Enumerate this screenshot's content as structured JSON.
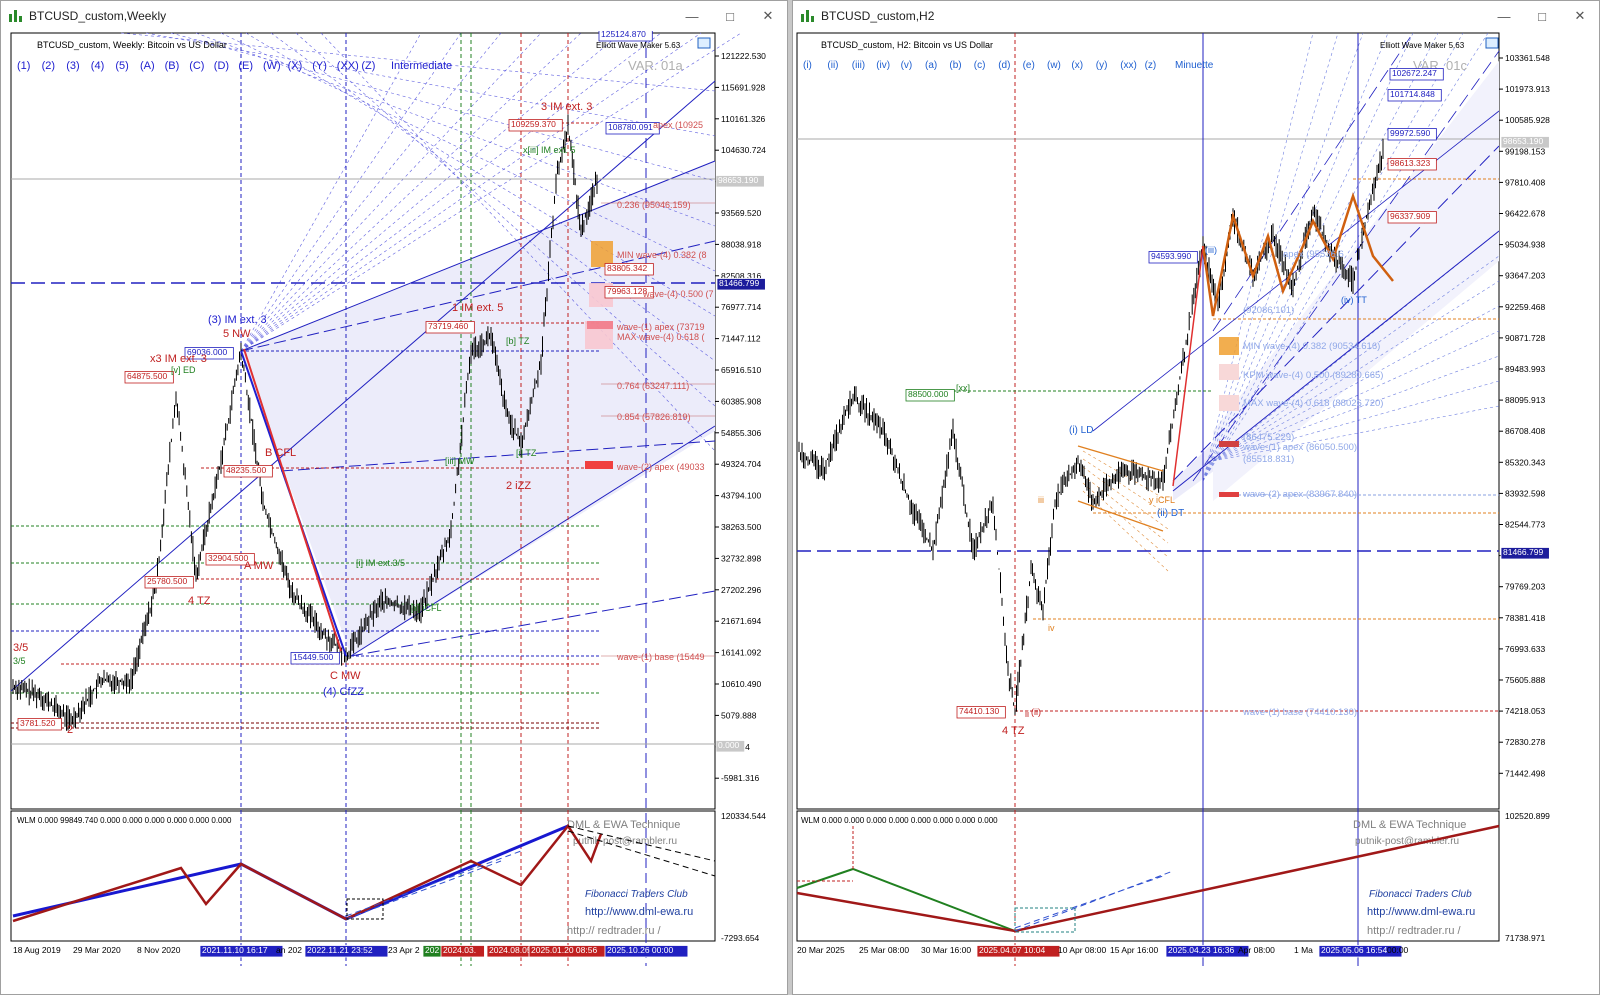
{
  "left": {
    "title": "BTCUSD_custom,Weekly",
    "symbol_line": "BTCUSD_custom, Weekly:  Bitcoin vs US Dollar",
    "plugin": "Elliott Wave Maker 5.63",
    "variant": "VAR. 01a",
    "degree": "Intermediate",
    "wave_buttons": [
      "(1)",
      "(2)",
      "(3)",
      "(4)",
      "(5)",
      "(A)",
      "(B)",
      "(C)",
      "(D)",
      "(E)",
      "(W)",
      "(X)",
      "(Y)",
      "(XX)",
      "(Z)"
    ],
    "price_axis": [
      "121222.530",
      "115691.928",
      "110161.326",
      "104630.724",
      "99100.122",
      "93569.520",
      "88038.918",
      "82508.316",
      "76977.714",
      "71447.112",
      "65916.510",
      "60385.908",
      "54855.306",
      "49324.704",
      "43794.100",
      "38263.500",
      "32732.898",
      "27202.296",
      "21671.694",
      "16141.092",
      "10610.490",
      "5079.888",
      "-451.14",
      "-5981.316"
    ],
    "current_price": "98653.190",
    "hline_price": "81466.799",
    "zero_price": "0.000",
    "time_axis": [
      "18 Aug 2019",
      "29 Mar 2020",
      "8 Nov 2020",
      "2021.11.10 16:17",
      "an 202",
      "2022.11.21 23:52",
      "23 Apr 2",
      "202",
      "2024.03.",
      "2024.08.05",
      "2025.01.20 08:56",
      "2025.10.26 00:00"
    ],
    "price_boxes": [
      "125124.870",
      "109259.370",
      "108780.091",
      "69036.000",
      "64875.500",
      "73719.460",
      "83805.342",
      "79963.128",
      "48235.500",
      "32904.500",
      "25780.500",
      "15449.500",
      "3781.520"
    ],
    "wave_labels": [
      "3 IM ext. 3",
      "x[iii] IM ext. 5",
      "1 IM ext. 5",
      "(3) IM ext. 3",
      "5 NW",
      "x3 IM ext. 3",
      "B CFL",
      "A MW",
      "4 TZ",
      "C MW",
      "(4) CfZZ",
      "2 iZZ",
      "[b] TZ",
      "[i] TZ",
      "[iii] MW",
      "[i] IM ext.3/5",
      "[ii] iCFL",
      "[v] ED",
      "3/5",
      "3/5",
      "2"
    ],
    "fib_labels": [
      "apex (10925",
      "0.236 (95046.159)",
      "MIN wave-(4) 0.382 (8",
      "wave-(4) 0.500 (7",
      "wave-(1) apex (73719",
      "MAX wave-(4) 0.618 (",
      "0.764 (63247.111)",
      "0.854 (57826.819)",
      "wave-(2) apex (49033",
      "wave-(1) base (15449"
    ],
    "indicator": "WLM 0.000 99849.740 0.000 0.000 0.000 0.000 0.000 0.000",
    "ind_axis_top": "120334.544",
    "ind_axis_bottom": "-7293.654",
    "credits": [
      "DML & EWA Technique",
      "putnik-post@rambler.ru",
      "Fibonacci    Traders    Club",
      "http://www.dml-ewa.ru",
      "http://  redtrader.ru /"
    ]
  },
  "right": {
    "title": "BTCUSD_custom,H2",
    "symbol_line": "BTCUSD_custom, H2:  Bitcoin vs US Dollar",
    "plugin": "Elliott Wave Maker 5.63",
    "variant": "VAR. 01c",
    "degree": "Minuette",
    "wave_buttons": [
      "(i)",
      "(ii)",
      "(iii)",
      "(iv)",
      "(v)",
      "(a)",
      "(b)",
      "(c)",
      "(d)",
      "(e)",
      "(w)",
      "(x)",
      "(y)",
      "(xx)",
      "(z)"
    ],
    "price_axis": [
      "103361.548",
      "101973.913",
      "100585.928",
      "99198.153",
      "97810.408",
      "96422.678",
      "95034.938",
      "93647.203",
      "92259.468",
      "90871.728",
      "89483.993",
      "88095.913",
      "86708.408",
      "85320.343",
      "83932.598",
      "82544.773",
      "81156.798",
      "79769.203",
      "78381.418",
      "76993.633",
      "75605.888",
      "74218.053",
      "72830.278",
      "71442.498"
    ],
    "current_price": "98653.190",
    "hline_price": "81466.799",
    "price_boxes": [
      "102672.247",
      "101714.848",
      "99972.590",
      "98613.323",
      "96337.909",
      "94593.990",
      "88500.000",
      "74410.130"
    ],
    "wave_labels": [
      "(i) LD",
      "(ii) DT",
      "(iii)",
      "(iv) TT",
      "4 TZ",
      "(ii)",
      "[xx]",
      "iii",
      "iv",
      "ii",
      "y iCFL"
    ],
    "fib_labels": [
      "apex (95536.6",
      "(92086.101)",
      "MIN wave-(4) 0.382 (90534.616)",
      "KPM wave-(4) 0.500 (89280.665)",
      "MAX wave-(4) 0.618 (88026.720)",
      "(86475.229)",
      "wave-(1) apex (86050.500)",
      "(85518.831)",
      "wave-(2) apex (83967.840)",
      "wave-(1) base (74410.130)"
    ],
    "time_axis": [
      "20 Mar 2025",
      "25 Mar 08:00",
      "30 Mar 16:00",
      "2025.04.07 10:04",
      "10 Apr 08:00",
      "15 Apr 16:00",
      "2025.04.23 16:36",
      "Apr 08:00",
      "1 Ma",
      "2025.05.06 16:54",
      "00:00"
    ],
    "indicator": "WLM 0.000 0.000 0.000 0.000 0.000 0.000 0.000 0.000",
    "ind_axis_top": "102520.899",
    "ind_axis_bottom": "71738.971",
    "credits": [
      "DML & EWA Technique",
      "putnik-post@rambler.ru",
      "Fibonacci    Traders    Club",
      "http://www.dml-ewa.ru",
      "http://  redtrader.ru /"
    ]
  },
  "colors": {
    "bull": "#000000",
    "wave_blue": "#2020d0",
    "wave_red": "#c02020",
    "wave_green": "#208020",
    "orange": "#e08020",
    "channel_fill": "#e8e8f8"
  }
}
